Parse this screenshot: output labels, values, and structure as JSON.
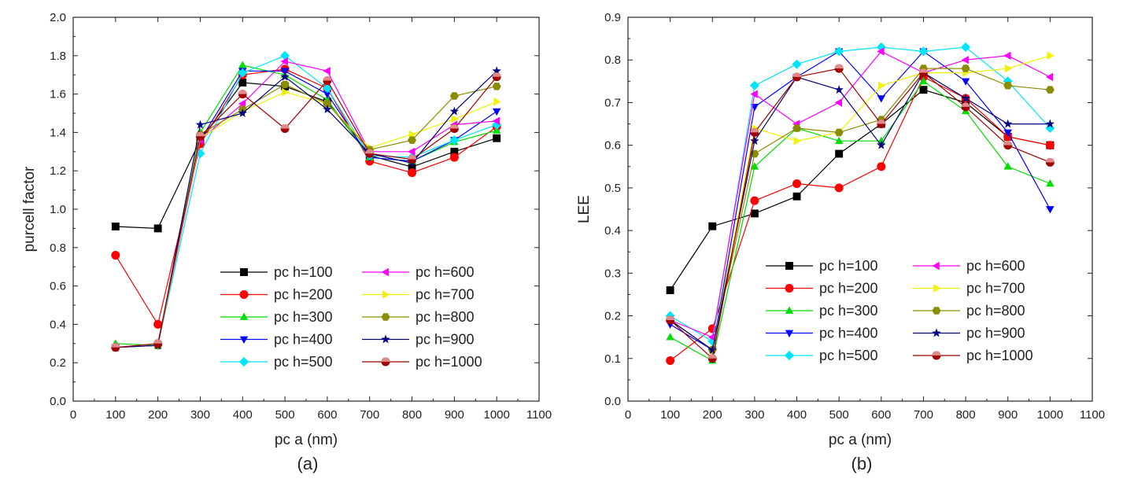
{
  "figure": {
    "charts": [
      "a",
      "b"
    ]
  },
  "series_styles": [
    {
      "name": "pc h=100",
      "color": "#000000",
      "marker": "square"
    },
    {
      "name": "pc h=200",
      "color": "#ff0000",
      "marker": "circle"
    },
    {
      "name": "pc h=300",
      "color": "#00dd00",
      "marker": "triangle-up"
    },
    {
      "name": "pc h=400",
      "color": "#0000ff",
      "marker": "triangle-down"
    },
    {
      "name": "pc h=500",
      "color": "#00e5ff",
      "marker": "diamond"
    },
    {
      "name": "pc h=600",
      "color": "#ff00ff",
      "marker": "triangle-left"
    },
    {
      "name": "pc h=700",
      "color": "#f2f200",
      "marker": "triangle-right"
    },
    {
      "name": "pc h=800",
      "color": "#8b8b00",
      "marker": "hexagon"
    },
    {
      "name": "pc h=900",
      "color": "#000080",
      "marker": "star"
    },
    {
      "name": "pc h=1000",
      "color": "#a00000",
      "marker": "half-circle"
    }
  ],
  "chart_data": [
    {
      "type": "line",
      "panel_label": "(a)",
      "title": "",
      "xlabel": "pc a (nm)",
      "ylabel": "purcell factor",
      "xlim": [
        0,
        1100
      ],
      "ylim": [
        0.0,
        2.0
      ],
      "xticks": [
        0,
        100,
        200,
        300,
        400,
        500,
        600,
        700,
        800,
        900,
        1000,
        1100
      ],
      "yticks": [
        0.0,
        0.2,
        0.4,
        0.6,
        0.8,
        1.0,
        1.2,
        1.4,
        1.6,
        1.8,
        2.0
      ],
      "ytick_labels": [
        "0.0",
        "0.2",
        "0.4",
        "0.6",
        "0.8",
        "1.0",
        "1.2",
        "1.4",
        "1.6",
        "1.8",
        "2.0"
      ],
      "legend_position": "lower-right, two columns",
      "x": [
        100,
        200,
        300,
        400,
        500,
        600,
        700,
        800,
        900,
        1000
      ],
      "series": [
        {
          "name": "pc h=100",
          "values": [
            0.91,
            0.9,
            1.36,
            1.66,
            1.64,
            1.56,
            1.28,
            1.22,
            1.3,
            1.37
          ]
        },
        {
          "name": "pc h=200",
          "values": [
            0.76,
            0.4,
            1.34,
            1.7,
            1.73,
            1.63,
            1.25,
            1.19,
            1.27,
            1.43
          ]
        },
        {
          "name": "pc h=300",
          "values": [
            0.3,
            0.29,
            1.4,
            1.75,
            1.7,
            1.57,
            1.27,
            1.25,
            1.35,
            1.41
          ]
        },
        {
          "name": "pc h=400",
          "values": [
            0.28,
            0.29,
            1.36,
            1.72,
            1.72,
            1.6,
            1.27,
            1.25,
            1.36,
            1.51
          ]
        },
        {
          "name": "pc h=500",
          "values": [
            0.28,
            0.29,
            1.29,
            1.71,
            1.8,
            1.63,
            1.28,
            1.27,
            1.36,
            1.44
          ]
        },
        {
          "name": "pc h=600",
          "values": [
            0.28,
            0.29,
            1.36,
            1.55,
            1.77,
            1.72,
            1.3,
            1.3,
            1.44,
            1.46
          ]
        },
        {
          "name": "pc h=700",
          "values": [
            0.28,
            0.29,
            1.37,
            1.51,
            1.61,
            1.55,
            1.32,
            1.39,
            1.47,
            1.56
          ]
        },
        {
          "name": "pc h=800",
          "values": [
            0.28,
            0.29,
            1.39,
            1.52,
            1.65,
            1.55,
            1.31,
            1.36,
            1.59,
            1.64
          ]
        },
        {
          "name": "pc h=900",
          "values": [
            0.28,
            0.29,
            1.44,
            1.5,
            1.69,
            1.52,
            1.29,
            1.24,
            1.51,
            1.72
          ]
        },
        {
          "name": "pc h=1000",
          "values": [
            0.28,
            0.3,
            1.38,
            1.6,
            1.42,
            1.67,
            1.29,
            1.26,
            1.42,
            1.69
          ]
        }
      ]
    },
    {
      "type": "line",
      "panel_label": "(b)",
      "title": "",
      "xlabel": "pc a (nm)",
      "ylabel": "LEE",
      "xlim": [
        0,
        1100
      ],
      "ylim": [
        0.0,
        0.9
      ],
      "xticks": [
        0,
        100,
        200,
        300,
        400,
        500,
        600,
        700,
        800,
        900,
        1000,
        1100
      ],
      "yticks": [
        0.0,
        0.1,
        0.2,
        0.3,
        0.4,
        0.5,
        0.6,
        0.7,
        0.8,
        0.9
      ],
      "ytick_labels": [
        "0.0",
        "0.1",
        "0.2",
        "0.3",
        "0.4",
        "0.5",
        "0.6",
        "0.7",
        "0.8",
        "0.9"
      ],
      "legend_position": "lower-right, two columns",
      "x": [
        100,
        200,
        300,
        400,
        500,
        600,
        700,
        800,
        900,
        1000
      ],
      "series": [
        {
          "name": "pc h=100",
          "values": [
            0.26,
            0.41,
            0.44,
            0.48,
            0.58,
            0.65,
            0.73,
            0.7,
            0.62,
            0.6
          ]
        },
        {
          "name": "pc h=200",
          "values": [
            0.095,
            0.17,
            0.47,
            0.51,
            0.5,
            0.55,
            0.76,
            0.71,
            0.62,
            0.6
          ]
        },
        {
          "name": "pc h=300",
          "values": [
            0.15,
            0.095,
            0.55,
            0.64,
            0.61,
            0.61,
            0.75,
            0.68,
            0.55,
            0.51
          ]
        },
        {
          "name": "pc h=400",
          "values": [
            0.18,
            0.12,
            0.69,
            0.76,
            0.82,
            0.71,
            0.82,
            0.75,
            0.63,
            0.45
          ]
        },
        {
          "name": "pc h=500",
          "values": [
            0.2,
            0.14,
            0.74,
            0.79,
            0.82,
            0.83,
            0.82,
            0.83,
            0.75,
            0.64
          ]
        },
        {
          "name": "pc h=600",
          "values": [
            0.19,
            0.15,
            0.72,
            0.65,
            0.7,
            0.82,
            0.77,
            0.8,
            0.81,
            0.76
          ]
        },
        {
          "name": "pc h=700",
          "values": [
            0.19,
            0.12,
            0.64,
            0.61,
            0.63,
            0.74,
            0.77,
            0.77,
            0.78,
            0.81
          ]
        },
        {
          "name": "pc h=800",
          "values": [
            0.19,
            0.12,
            0.58,
            0.64,
            0.63,
            0.66,
            0.78,
            0.78,
            0.74,
            0.73
          ]
        },
        {
          "name": "pc h=900",
          "values": [
            0.19,
            0.12,
            0.61,
            0.76,
            0.73,
            0.6,
            0.77,
            0.71,
            0.65,
            0.65
          ]
        },
        {
          "name": "pc h=1000",
          "values": [
            0.19,
            0.1,
            0.63,
            0.76,
            0.78,
            0.65,
            0.77,
            0.69,
            0.6,
            0.56
          ]
        }
      ]
    }
  ]
}
